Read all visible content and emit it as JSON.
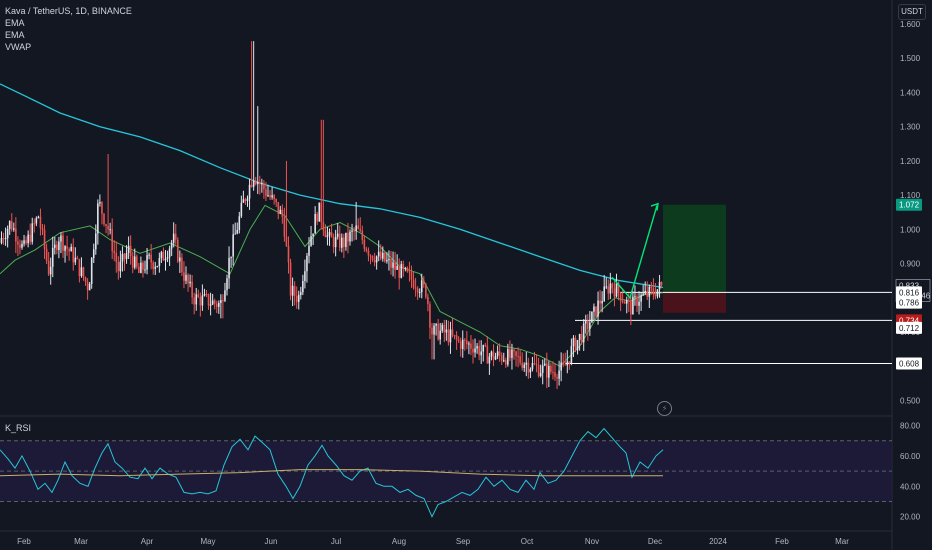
{
  "legend": {
    "title": "Kava / TetherUS, 1D, BINANCE",
    "ind1": "EMA",
    "ind2": "EMA",
    "ind3": "VWAP"
  },
  "unit_button": "USDT",
  "rsi_title": "K_RSI",
  "colors": {
    "background": "#131722",
    "up": "#e1e4ea",
    "down": "#ef5350",
    "ema_long": "#26c6da",
    "ema_short": "#4caf50",
    "rsi": "#26c6da",
    "rsi_ma": "#c8b06a",
    "target_zone": "#0c3b1e",
    "stop_zone": "#4a121a",
    "projection": "#00e676",
    "level_line": "#ffffff"
  },
  "chart_data": [
    {
      "type": "candlestick",
      "title": "Kava / TetherUS, 1D, BINANCE",
      "ylabel": "USDT",
      "y_ticks": [
        "0.500",
        "0.600",
        "0.700",
        "0.800",
        "0.900",
        "1.000",
        "1.100",
        "1.200",
        "1.300",
        "1.400",
        "1.500",
        "1.600"
      ],
      "ylim": [
        0.48,
        1.65
      ],
      "x_ticks": [
        "Feb",
        "Mar",
        "Apr",
        "May",
        "Jun",
        "Jul",
        "Aug",
        "Sep",
        "Oct",
        "Nov",
        "Dec",
        "2024",
        "Feb",
        "Mar"
      ],
      "grid": false,
      "series": [
        {
          "name": "EMA",
          "points": [
            [
              0,
              1.425
            ],
            [
              25,
              1.39
            ],
            [
              60,
              1.34
            ],
            [
              100,
              1.3
            ],
            [
              140,
              1.27
            ],
            [
              180,
              1.23
            ],
            [
              220,
              1.18
            ],
            [
              260,
              1.135
            ],
            [
              300,
              1.1
            ],
            [
              340,
              1.075
            ],
            [
              380,
              1.06
            ],
            [
              420,
              1.035
            ],
            [
              460,
              1.0
            ],
            [
              500,
              0.96
            ],
            [
              540,
              0.92
            ],
            [
              580,
              0.88
            ],
            [
              620,
              0.85
            ],
            [
              663,
              0.83
            ]
          ]
        },
        {
          "name": "EMA",
          "points": [
            [
              0,
              0.87
            ],
            [
              15,
              0.91
            ],
            [
              35,
              0.94
            ],
            [
              60,
              0.99
            ],
            [
              90,
              1.01
            ],
            [
              110,
              0.97
            ],
            [
              140,
              0.93
            ],
            [
              170,
              0.96
            ],
            [
              200,
              0.92
            ],
            [
              230,
              0.87
            ],
            [
              250,
              1.0
            ],
            [
              265,
              1.07
            ],
            [
              285,
              1.04
            ],
            [
              305,
              0.95
            ],
            [
              320,
              1.0
            ],
            [
              340,
              1.02
            ],
            [
              360,
              0.99
            ],
            [
              380,
              0.95
            ],
            [
              400,
              0.89
            ],
            [
              420,
              0.87
            ],
            [
              440,
              0.76
            ],
            [
              460,
              0.73
            ],
            [
              480,
              0.7
            ],
            [
              500,
              0.66
            ],
            [
              520,
              0.65
            ],
            [
              540,
              0.63
            ],
            [
              560,
              0.6
            ],
            [
              580,
              0.66
            ],
            [
              600,
              0.76
            ],
            [
              615,
              0.8
            ],
            [
              630,
              0.79
            ],
            [
              645,
              0.81
            ],
            [
              663,
              0.815
            ]
          ]
        }
      ],
      "annotations": {
        "levels": [
          "0.816",
          "0.786",
          "0.734",
          "0.712",
          "0.608"
        ],
        "last_price": "0.833",
        "countdown": "05:46:46",
        "target_price": "1.072",
        "stop_price": "0.734"
      }
    },
    {
      "type": "line",
      "title": "K_RSI",
      "y_ticks": [
        "20.00",
        "40.00",
        "60.00",
        "80.00"
      ],
      "ylim": [
        13,
        87
      ],
      "levels": [
        70,
        50,
        30
      ],
      "grid": false
    }
  ]
}
